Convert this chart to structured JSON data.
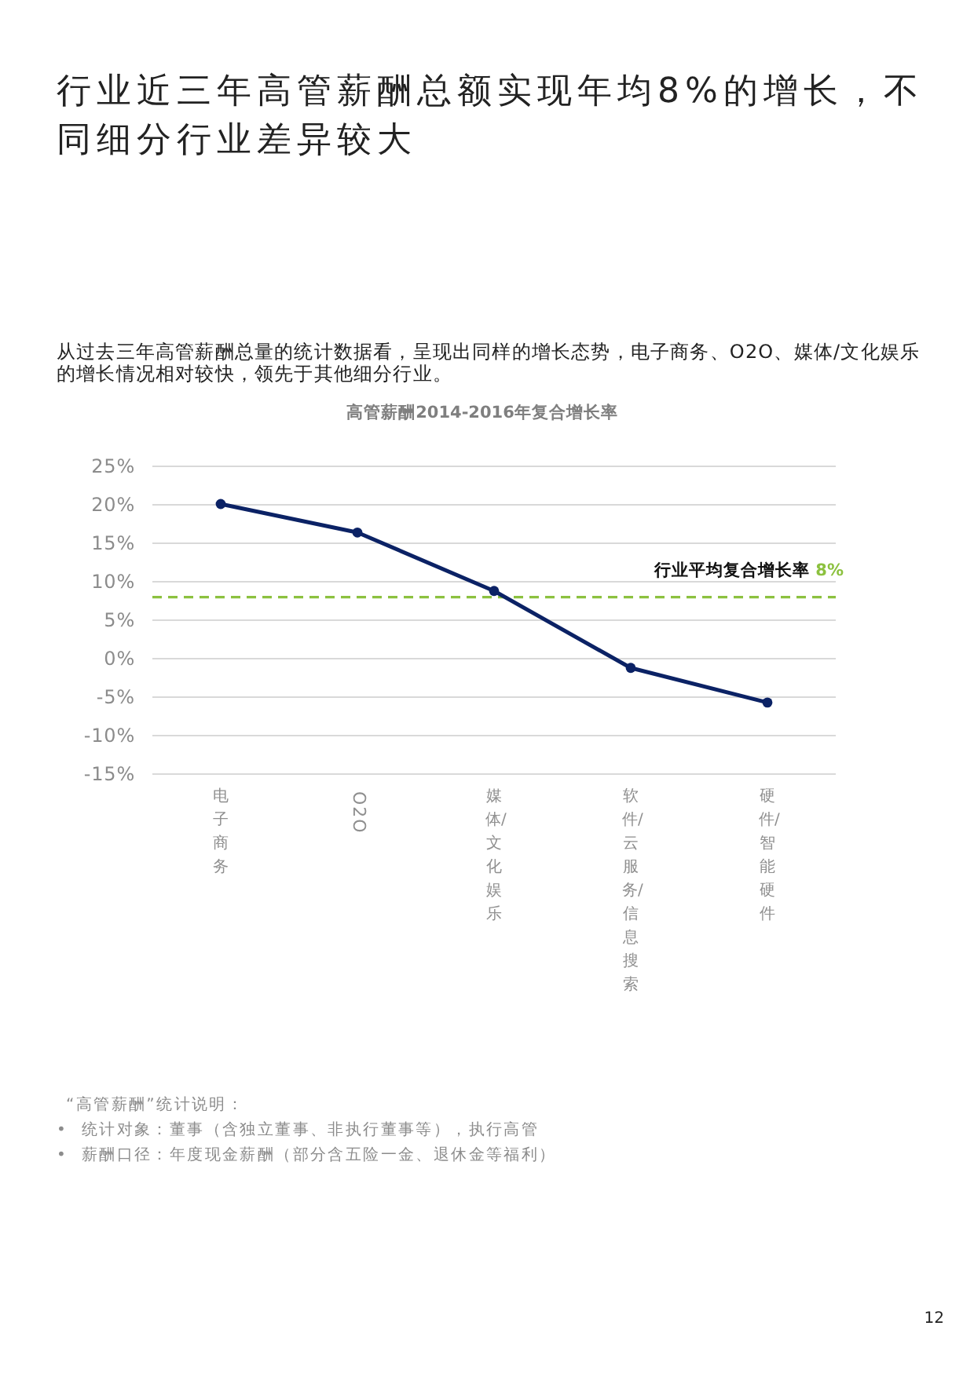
{
  "chart_data": {
    "type": "line",
    "title": "行业近三年高管薪酬总额实现年均8%的增长，不同细分行业差异较大",
    "subtitle": "从过去三年高管薪酬总量的统计数据看，呈现出同样的增长态势，电子商务、O2O、媒体/文化娱乐的增长情况相对较快，领先于其他细分行业。",
    "categories": [
      "电子商务",
      "O2O",
      "媒体/文化娱乐",
      "软件/云服务/信息搜索",
      "硬件/智能硬件"
    ],
    "series": [
      {
        "color": "#0b2265",
        "values": [
          20.1,
          16.4,
          8.8,
          -1.2,
          -5.7
        ]
      }
    ],
    "ylim": [
      -15,
      25
    ],
    "yticks": [
      {
        "value": -15,
        "label": "-15%"
      },
      {
        "value": -10,
        "label": "-10%"
      },
      {
        "value": -5,
        "label": "-5%"
      },
      {
        "value": 0,
        "label": "0%"
      },
      {
        "value": 5,
        "label": "5%"
      },
      {
        "value": 10,
        "label": "10%"
      },
      {
        "value": 15,
        "label": "15%"
      },
      {
        "value": 20,
        "label": "20%"
      },
      {
        "value": 25,
        "label": "25%"
      }
    ],
    "grid": "y",
    "marker": "circle",
    "ref_lines": [
      {
        "axis": "y",
        "value": 8,
        "label": "行业平均复合增长率 8%",
        "color": "#8cc13f",
        "line_style": "dashed"
      }
    ],
    "annotations": [
      "高管薪酬2014-2016年复合增长率",
      "“高管薪酬”统计说明：",
      "•  统计对象：董事（含独立董事、非执行董事等），执行高管",
      "•  薪酬口径：年度现金薪酬（部分含五险一金、退休金等福利）",
      "12"
    ]
  }
}
